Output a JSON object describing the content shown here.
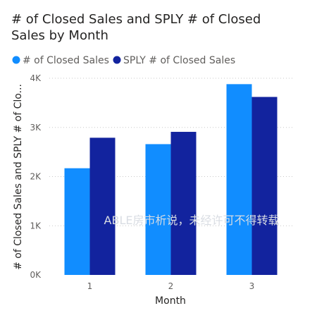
{
  "chart_data": {
    "type": "bar",
    "title_lines": [
      "# of Closed Sales and SPLY # of Closed",
      "Sales by Month"
    ],
    "xlabel": "Month",
    "ylabel": "# of Closed Sales and SPLY # of Clo...",
    "categories": [
      "1",
      "2",
      "3"
    ],
    "ylim": [
      0,
      4000
    ],
    "yticks": [
      0,
      1000,
      2000,
      3000,
      4000
    ],
    "ytick_labels": [
      "0K",
      "1K",
      "2K",
      "3K",
      "4K"
    ],
    "grid": true,
    "legend_position": "top-left",
    "series": [
      {
        "name": "# of Closed Sales",
        "color": "#118dff",
        "values": [
          2170,
          2660,
          3880
        ]
      },
      {
        "name": "SPLY # of Closed Sales",
        "color": "#12239e",
        "values": [
          2790,
          2910,
          3620
        ]
      }
    ]
  },
  "watermark": "ABLE房市析说，未经许可不得转载"
}
